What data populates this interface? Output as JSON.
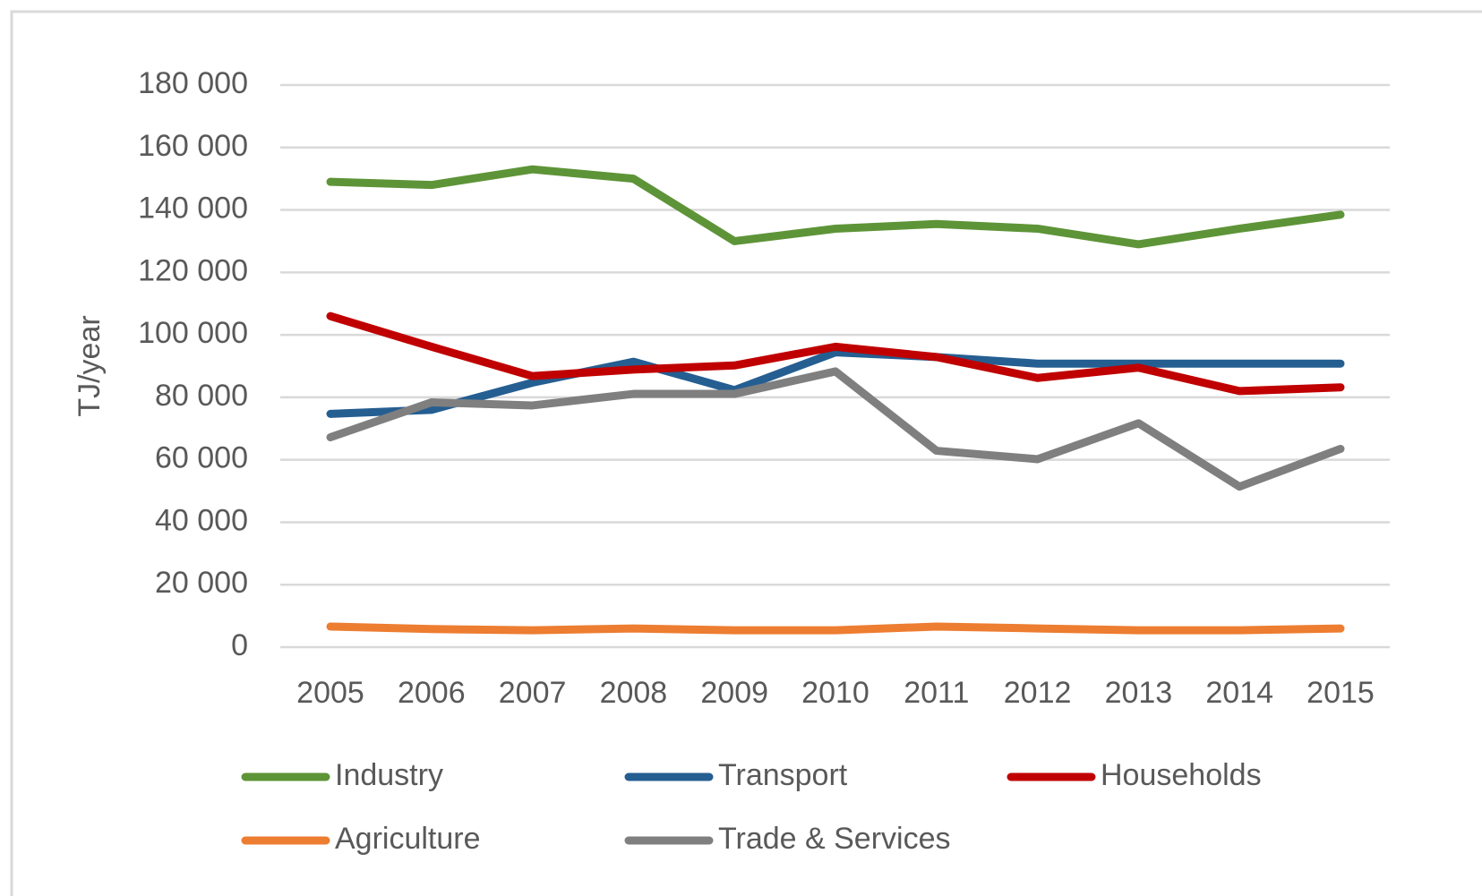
{
  "chart_data": {
    "type": "line",
    "ylabel": "TJ/year",
    "categories": [
      "2005",
      "2006",
      "2007",
      "2008",
      "2009",
      "2010",
      "2011",
      "2012",
      "2013",
      "2014",
      "2015"
    ],
    "series": [
      {
        "name": "Industry",
        "color": "#5e9438",
        "values": [
          149000,
          148000,
          153000,
          150000,
          130000,
          134000,
          135500,
          134000,
          129000,
          134000,
          138500
        ]
      },
      {
        "name": "Transport",
        "color": "#255e91",
        "values": [
          74700,
          76000,
          84700,
          91400,
          82300,
          94400,
          92900,
          90800,
          90800,
          90800,
          90800
        ]
      },
      {
        "name": "Households",
        "color": "#c00000",
        "values": [
          106000,
          96200,
          86800,
          88900,
          90200,
          96200,
          92900,
          86200,
          89500,
          82000,
          83200
        ]
      },
      {
        "name": "Agriculture",
        "color": "#ed7d31",
        "values": [
          6600,
          5800,
          5400,
          6000,
          5400,
          5400,
          6600,
          6000,
          5400,
          5400,
          6000
        ]
      },
      {
        "name": "Trade & Services",
        "color": "#7f7f7f",
        "values": [
          67200,
          78400,
          77400,
          81100,
          81100,
          88300,
          62900,
          60200,
          71700,
          51400,
          63500
        ]
      }
    ],
    "ylim": [
      0,
      180000
    ],
    "yticks": [
      0,
      {
        "value": 20000,
        "label": "20 000"
      },
      {
        "value": 40000,
        "label": "40 000"
      },
      {
        "value": 60000,
        "label": "60 000"
      },
      {
        "value": 80000,
        "label": "80 000"
      },
      {
        "value": 100000,
        "label": "100 000"
      },
      {
        "value": 120000,
        "label": "120 000"
      },
      {
        "value": 140000,
        "label": "140 000"
      },
      {
        "value": 160000,
        "label": "160 000"
      },
      {
        "value": 180000,
        "label": "180 000"
      }
    ],
    "grid": true,
    "legend": "bottom"
  }
}
